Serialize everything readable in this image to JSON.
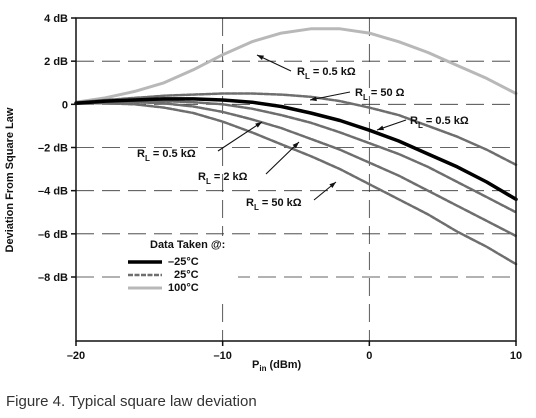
{
  "caption": "Figure 4. Typical square law deviation",
  "chart_data": {
    "type": "line",
    "xlabel_main": "P",
    "xlabel_sub": "in",
    "xlabel_unit": "(dBm)",
    "ylabel": "Deviation From Square Law",
    "xlim": [
      -20,
      10
    ],
    "ylim": [
      -9,
      4
    ],
    "x_ticks": [
      -20,
      -10,
      0,
      10
    ],
    "x_tick_labels": [
      "–20",
      "–10",
      "0",
      "10"
    ],
    "y_ticks": [
      4,
      2,
      0,
      -2,
      -4,
      -6,
      -8
    ],
    "y_tick_labels": [
      "4 dB",
      "2 dB",
      "0",
      "–2 dB",
      "–4 dB",
      "–6 dB",
      "–8 dB"
    ],
    "grid": "dashed major",
    "legend": {
      "title": "Data Taken @:",
      "items": [
        {
          "label": "–25°C",
          "style": "thick-black"
        },
        {
          "label": "25°C",
          "style": "gray"
        },
        {
          "label": "100°C",
          "style": "light-gray"
        }
      ]
    },
    "series": [
      {
        "temp": "100°C",
        "load": "R_L = 0.5 kΩ",
        "x": [
          -20,
          -18,
          -16,
          -14,
          -12,
          -10,
          -8,
          -6,
          -4,
          -2,
          0,
          2,
          4,
          6,
          8,
          10
        ],
        "y": [
          0.1,
          0.3,
          0.6,
          1.0,
          1.6,
          2.3,
          2.9,
          3.3,
          3.5,
          3.5,
          3.3,
          2.9,
          2.4,
          1.8,
          1.2,
          0.5
        ]
      },
      {
        "temp": "25°C",
        "load": "R_L = 50 Ω",
        "x": [
          -20,
          -18,
          -16,
          -14,
          -12,
          -10,
          -8,
          -6,
          -4,
          -2,
          0,
          2,
          4,
          6,
          8,
          10
        ],
        "y": [
          0.1,
          0.2,
          0.3,
          0.4,
          0.45,
          0.5,
          0.5,
          0.45,
          0.35,
          0.15,
          -0.15,
          -0.5,
          -1.0,
          -1.5,
          -2.1,
          -2.8
        ]
      },
      {
        "temp": "–25°C",
        "load": "R_L = 0.5 kΩ",
        "x": [
          -20,
          -18,
          -16,
          -14,
          -12,
          -10,
          -8,
          -6,
          -4,
          -2,
          0,
          2,
          4,
          6,
          8,
          10
        ],
        "y": [
          0.05,
          0.15,
          0.2,
          0.25,
          0.25,
          0.2,
          0.1,
          -0.1,
          -0.4,
          -0.75,
          -1.2,
          -1.7,
          -2.3,
          -2.9,
          -3.6,
          -4.4
        ]
      },
      {
        "temp": "25°C",
        "load": "R_L = 0.5 kΩ",
        "x": [
          -20,
          -18,
          -16,
          -14,
          -12,
          -10,
          -8,
          -6,
          -4,
          -2,
          0,
          2,
          4,
          6,
          8,
          10
        ],
        "y": [
          0.05,
          0.1,
          0.15,
          0.15,
          0.1,
          0.0,
          -0.2,
          -0.5,
          -0.85,
          -1.3,
          -1.8,
          -2.3,
          -2.9,
          -3.6,
          -4.3,
          -5.0
        ]
      },
      {
        "temp": "25°C",
        "load": "R_L = 2 kΩ",
        "x": [
          -20,
          -18,
          -16,
          -14,
          -12,
          -10,
          -8,
          -6,
          -4,
          -2,
          0,
          2,
          4,
          6,
          8,
          10
        ],
        "y": [
          0.05,
          0.1,
          0.1,
          0.05,
          -0.1,
          -0.35,
          -0.7,
          -1.1,
          -1.6,
          -2.1,
          -2.7,
          -3.3,
          -4.0,
          -4.7,
          -5.4,
          -6.1
        ]
      },
      {
        "temp": "25°C",
        "load": "R_L = 50 kΩ",
        "x": [
          -20,
          -18,
          -16,
          -14,
          -12,
          -10,
          -8,
          -6,
          -4,
          -2,
          0,
          2,
          4,
          6,
          8,
          10
        ],
        "y": [
          0.05,
          0.05,
          0.0,
          -0.15,
          -0.4,
          -0.8,
          -1.3,
          -1.85,
          -2.4,
          -3.0,
          -3.7,
          -4.4,
          -5.1,
          -5.9,
          -6.6,
          -7.4
        ]
      }
    ],
    "annotations": [
      {
        "pre": "R",
        "sub": "L",
        "post": " = 0.5 kΩ"
      },
      {
        "pre": "R",
        "sub": "L",
        "post": " = 50 Ω"
      },
      {
        "pre": "R",
        "sub": "L",
        "post": " = 0.5 kΩ"
      },
      {
        "pre": "R",
        "sub": "L",
        "post": " = 0.5 kΩ"
      },
      {
        "pre": "R",
        "sub": "L",
        "post": " = 2 kΩ"
      },
      {
        "pre": "R",
        "sub": "L",
        "post": " = 50 kΩ"
      }
    ],
    "colors": {
      "thick_black": "#000000",
      "gray": "#6e6e6e",
      "light_gray": "#b8b8b8",
      "axis": "#111111"
    }
  }
}
